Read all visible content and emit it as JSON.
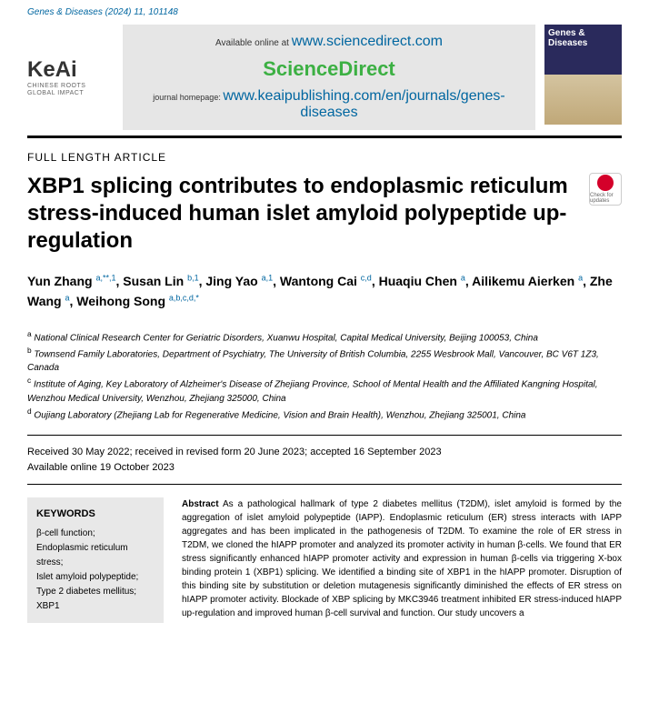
{
  "header": {
    "journal": "Genes & Diseases (2024) 11, 101148"
  },
  "banner": {
    "logo_main": "KeAi",
    "logo_sub1": "CHINESE ROOTS",
    "logo_sub2": "GLOBAL IMPACT",
    "available_text": "Available online at ",
    "available_link": "www.sciencedirect.com",
    "sd_logo": "ScienceDirect",
    "homepage_text": "journal homepage: ",
    "homepage_link": "www.keaipublishing.com/en/journals/genes-diseases",
    "cover_title": "Genes & Diseases"
  },
  "article": {
    "type": "FULL LENGTH ARTICLE",
    "title": "XBP1 splicing contributes to endoplasmic reticulum stress-induced human islet amyloid polypeptide up-regulation",
    "check_label": "Check for updates"
  },
  "authors": [
    {
      "name": "Yun Zhang ",
      "sup": "a,**,1"
    },
    {
      "name": ", Susan Lin ",
      "sup": "b,1"
    },
    {
      "name": ", Jing Yao ",
      "sup": "a,1"
    },
    {
      "name": ", Wantong Cai ",
      "sup": "c,d"
    },
    {
      "name": ", Huaqiu Chen ",
      "sup": "a"
    },
    {
      "name": ", Ailikemu Aierken ",
      "sup": "a"
    },
    {
      "name": ", Zhe Wang ",
      "sup": "a"
    },
    {
      "name": ", Weihong Song ",
      "sup": "a,b,c,d,*"
    }
  ],
  "affiliations": [
    {
      "sup": "a",
      "text": " National Clinical Research Center for Geriatric Disorders, Xuanwu Hospital, Capital Medical University, Beijing 100053, China"
    },
    {
      "sup": "b",
      "text": " Townsend Family Laboratories, Department of Psychiatry, The University of British Columbia, 2255 Wesbrook Mall, Vancouver, BC V6T 1Z3, Canada"
    },
    {
      "sup": "c",
      "text": " Institute of Aging, Key Laboratory of Alzheimer's Disease of Zhejiang Province, School of Mental Health and the Affiliated Kangning Hospital, Wenzhou Medical University, Wenzhou, Zhejiang 325000, China"
    },
    {
      "sup": "d",
      "text": " Oujiang Laboratory (Zhejiang Lab for Regenerative Medicine, Vision and Brain Health), Wenzhou, Zhejiang 325001, China"
    }
  ],
  "dates": {
    "line1": "Received 30 May 2022; received in revised form 20 June 2023; accepted 16 September 2023",
    "line2": "Available online 19 October 2023"
  },
  "keywords": {
    "title": "KEYWORDS",
    "items": "β-cell function;\nEndoplasmic reticulum stress;\nIslet amyloid polypeptide;\nType 2 diabetes mellitus;\nXBP1"
  },
  "abstract": {
    "label": "Abstract",
    "text": "   As a pathological hallmark of type 2 diabetes mellitus (T2DM), islet amyloid is formed by the aggregation of islet amyloid polypeptide (IAPP). Endoplasmic reticulum (ER) stress interacts with IAPP aggregates and has been implicated in the pathogenesis of T2DM. To examine the role of ER stress in T2DM, we cloned the hIAPP promoter and analyzed its promoter activity in human β-cells. We found that ER stress significantly enhanced hIAPP promoter activity and expression in human β-cells via triggering X-box binding protein 1 (XBP1) splicing. We identified a binding site of XBP1 in the hIAPP promoter. Disruption of this binding site by substitution or deletion mutagenesis significantly diminished the effects of ER stress on hIAPP promoter activity. Blockade of XBP splicing by MKC3946 treatment inhibited ER stress-induced hIAPP up-regulation and improved human β-cell survival and function. Our study uncovers a"
  }
}
